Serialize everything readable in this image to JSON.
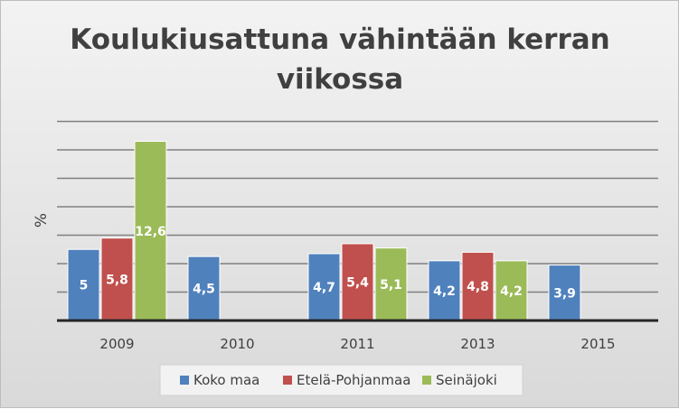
{
  "chart_data": {
    "type": "bar",
    "title_lines": [
      "Koulukiusattuna vähintään kerran",
      "viikossa"
    ],
    "xlabel": "",
    "ylabel": "%",
    "categories": [
      "2009",
      "2010",
      "2011",
      "2013",
      "2015"
    ],
    "series": [
      {
        "name": "Koko maa",
        "color": "#4f81bd",
        "values": [
          5,
          4.5,
          4.7,
          4.2,
          3.9
        ],
        "labels": [
          "5",
          "4,5",
          "4,7",
          "4,2",
          "3,9"
        ]
      },
      {
        "name": "Etelä-Pohjanmaa",
        "color": "#c0504d",
        "values": [
          5.8,
          null,
          5.4,
          4.8,
          null
        ],
        "labels": [
          "5,8",
          "",
          "5,4",
          "4,8",
          ""
        ]
      },
      {
        "name": "Seinäjoki",
        "color": "#9bbb59",
        "values": [
          12.6,
          null,
          5.1,
          4.2,
          null
        ],
        "labels": [
          "12,6",
          "",
          "5,1",
          "4,2",
          ""
        ]
      }
    ],
    "ylim": [
      0,
      14
    ],
    "y_tick_step": 2,
    "y_tick_labels_shown": false,
    "grid": true,
    "legend_position": "bottom"
  }
}
